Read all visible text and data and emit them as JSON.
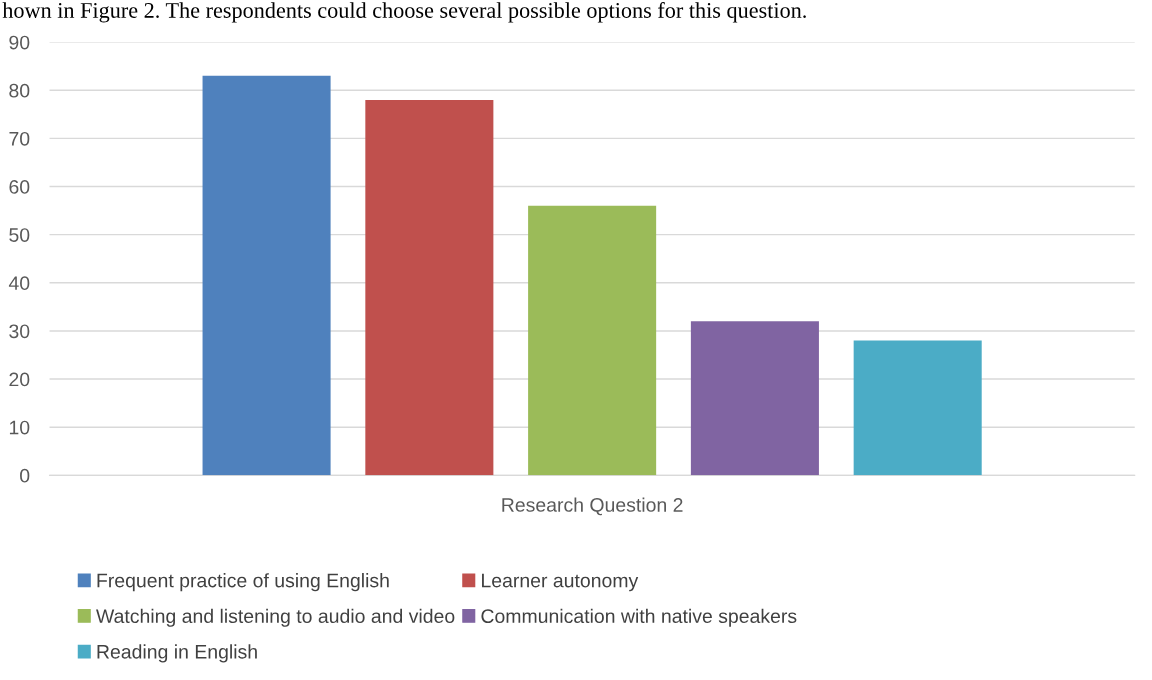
{
  "chart_data": {
    "type": "bar",
    "categories": [
      "Research Question 2"
    ],
    "series": [
      {
        "name": "Frequent practice of using English",
        "color": "#4f81bd",
        "values": [
          83
        ]
      },
      {
        "name": "Learner autonomy",
        "color": "#c0504d",
        "values": [
          78
        ]
      },
      {
        "name": "Watching and listening to audio and video",
        "color": "#9bbb59",
        "values": [
          56
        ]
      },
      {
        "name": "Communication with native speakers",
        "color": "#8064a2",
        "values": [
          32
        ]
      },
      {
        "name": "Reading in English",
        "color": "#4bacc6",
        "values": [
          28
        ]
      }
    ],
    "ylim": [
      0,
      90
    ],
    "yticks": [
      0,
      10,
      20,
      30,
      40,
      50,
      60,
      70,
      80,
      90
    ],
    "grid": "y",
    "legend": "bottom",
    "annotations": [
      "hown in Figure 2. The respondents could choose several possible options for this question."
    ]
  }
}
